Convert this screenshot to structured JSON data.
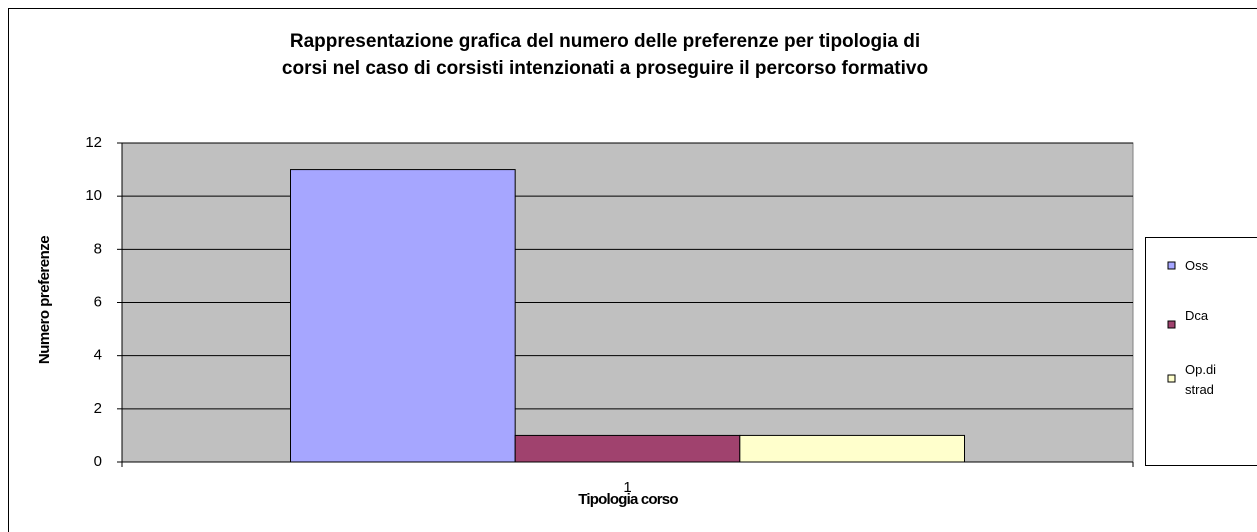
{
  "chart_data": {
    "type": "bar",
    "title": "Rappresentazione grafica del numero delle preferenze per tipologia di\ncorsi nel caso di corsisti intenzionati a proseguire il percorso formativo",
    "x_label": "Tipologia corso",
    "y_label": "Numero preferenze",
    "categories": [
      "1"
    ],
    "series": [
      {
        "name": "Oss",
        "color": "#a6a6ff",
        "values": [
          11
        ]
      },
      {
        "name": "Dca",
        "color": "#a0426e",
        "values": [
          1
        ]
      },
      {
        "name": "Op.di strad",
        "color": "#ffffcc",
        "values": [
          1
        ]
      }
    ],
    "ylim": [
      0,
      12
    ],
    "yticks": [
      0,
      2,
      4,
      6,
      8,
      10,
      12
    ],
    "grid": true,
    "legend": "right"
  }
}
